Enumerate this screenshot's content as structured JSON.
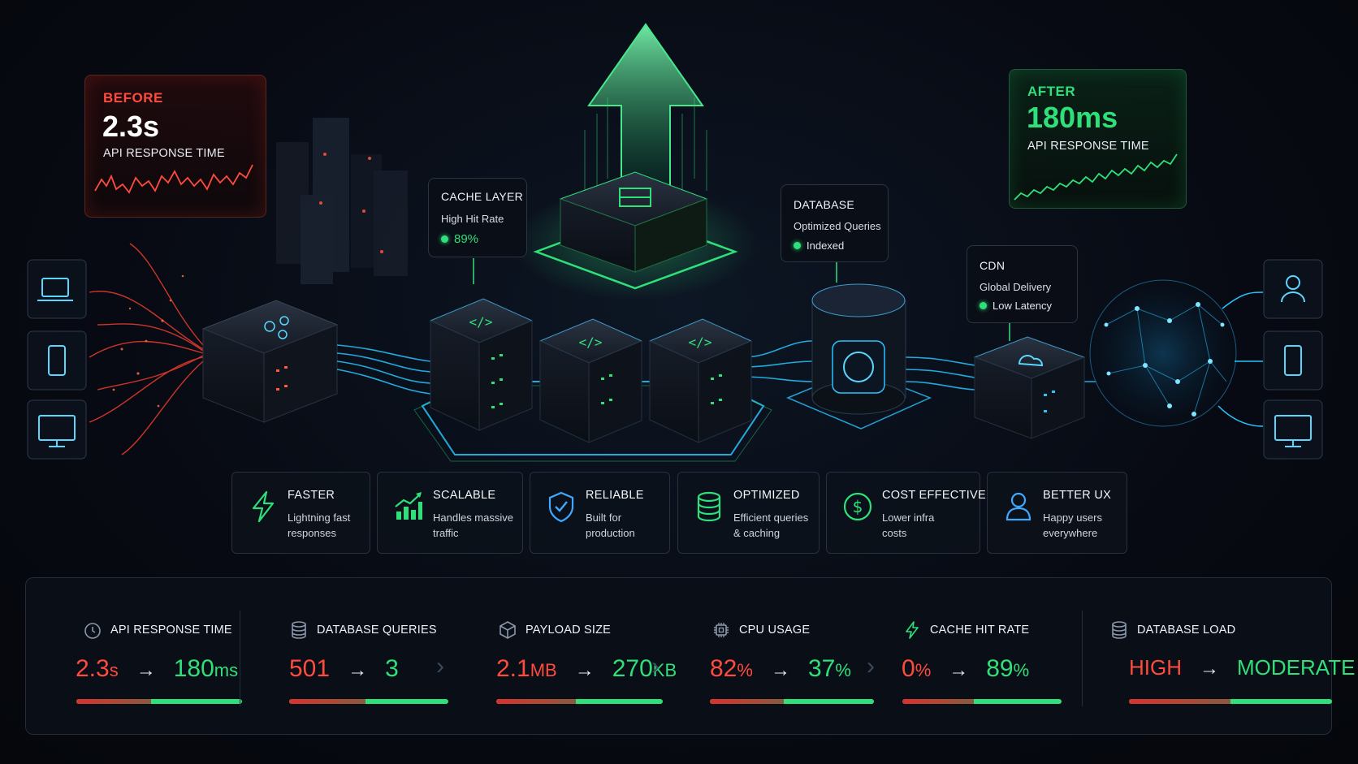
{
  "before": {
    "label": "BEFORE",
    "value": "2.3s",
    "caption": "API RESPONSE TIME"
  },
  "after": {
    "label": "AFTER",
    "value": "180ms",
    "caption": "API RESPONSE TIME"
  },
  "cache": {
    "title": "CACHE LAYER",
    "line": "High Hit Rate",
    "status": "89%"
  },
  "database": {
    "title": "DATABASE",
    "line": "Optimized Queries",
    "status": "Indexed"
  },
  "cdn": {
    "title": "CDN",
    "line": "Global Delivery",
    "status": "Low Latency"
  },
  "features": [
    {
      "title": "FASTER",
      "desc1": "Lightning fast",
      "desc2": "responses",
      "icon": "lightning-icon"
    },
    {
      "title": "SCALABLE",
      "desc1": "Handles massive",
      "desc2": "traffic",
      "icon": "growth-chart-icon"
    },
    {
      "title": "RELIABLE",
      "desc1": "Built for",
      "desc2": "production",
      "icon": "shield-check-icon"
    },
    {
      "title": "OPTIMIZED",
      "desc1": "Efficient queries",
      "desc2": "& caching",
      "icon": "database-icon"
    },
    {
      "title": "COST EFFECTIVE",
      "desc1": "Lower infra",
      "desc2": "costs",
      "icon": "dollar-icon"
    },
    {
      "title": "BETTER UX",
      "desc1": "Happy users",
      "desc2": "everywhere",
      "icon": "user-icon"
    }
  ],
  "metrics": [
    {
      "label": "API RESPONSE TIME",
      "icon": "clock-icon",
      "before": "2.3",
      "before_unit": "s",
      "after": "180",
      "after_unit": "ms",
      "improvement_share": 0.55
    },
    {
      "label": "DATABASE QUERIES",
      "icon": "database-icon",
      "before": "501",
      "before_unit": "",
      "after": "3",
      "after_unit": "",
      "improvement_share": 0.52
    },
    {
      "label": "PAYLOAD SIZE",
      "icon": "package-icon",
      "before": "2.1",
      "before_unit": "MB",
      "after": "270",
      "after_unit": "KB",
      "improvement_share": 0.52
    },
    {
      "label": "CPU USAGE",
      "icon": "cpu-icon",
      "before": "82",
      "before_unit": "%",
      "after": "37",
      "after_unit": "%",
      "improvement_share": 0.55
    },
    {
      "label": "CACHE HIT RATE",
      "icon": "lightning-icon",
      "before": "0",
      "before_unit": "%",
      "after": "89",
      "after_unit": "%",
      "improvement_share": 0.55
    },
    {
      "label": "DATABASE LOAD",
      "icon": "database-icon",
      "before": "HIGH",
      "before_unit": "",
      "after": "MODERATE",
      "after_unit": "",
      "improvement_share": 0.5
    }
  ],
  "colors": {
    "before": "#ff4b3e",
    "after": "#2fe07a",
    "flow": "#27c4ff",
    "accent": "#25e58a"
  }
}
